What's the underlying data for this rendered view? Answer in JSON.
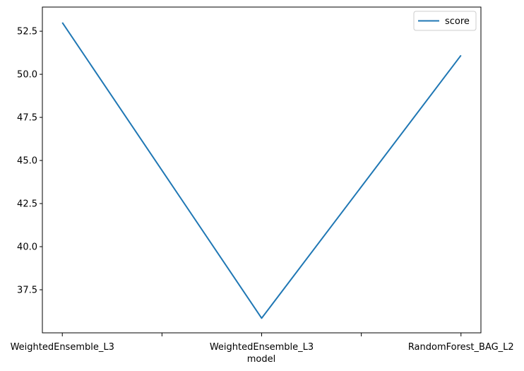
{
  "chart_data": {
    "type": "line",
    "title": "",
    "xlabel": "model",
    "ylabel": "",
    "categories": [
      "WeightedEnsemble_L3",
      "WeightedEnsemble_L3",
      "RandomForest_BAG_L2"
    ],
    "series": [
      {
        "name": "score",
        "color": "#1f77b4",
        "values": [
          53.0,
          35.85,
          51.1
        ]
      }
    ],
    "ylim": [
      35.0,
      53.9
    ],
    "yticks": [
      37.5,
      40.0,
      42.5,
      45.0,
      47.5,
      50.0,
      52.5
    ],
    "ytick_labels": [
      "37.5",
      "40.0",
      "42.5",
      "45.0",
      "47.5",
      "50.0",
      "52.5"
    ],
    "x_minor_ticks": [
      0.5,
      1.5
    ],
    "grid": false,
    "legend_position": "upper right"
  }
}
